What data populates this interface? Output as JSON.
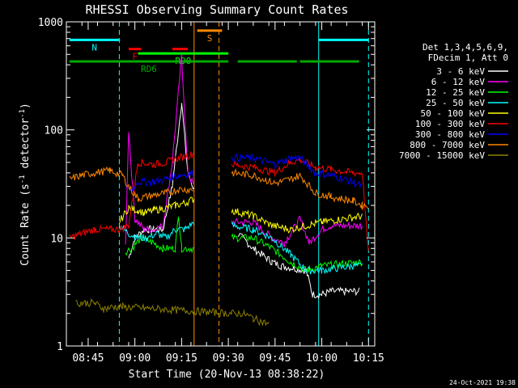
{
  "chart_data": {
    "type": "line",
    "title": "RHESSI Observing Summary Count Rates",
    "xlabel": "Start Time (20-Nov-13 08:38:22)",
    "ylabel_main": "Count Rate (s",
    "ylabel_sup1": "-1",
    "ylabel_mid": " detector",
    "ylabel_sup2": "-1",
    "ylabel_end": ")",
    "y_scale": "log",
    "ylim": [
      1,
      1000
    ],
    "xlim": [
      "08:38",
      "10:17"
    ],
    "y_ticks": [
      {
        "value": 1,
        "label": "1"
      },
      {
        "value": 10,
        "label": "10"
      },
      {
        "value": 100,
        "label": "100"
      },
      {
        "value": 1000,
        "label": "1000"
      }
    ],
    "x_ticks": [
      {
        "t": "08:45",
        "label": "08:45"
      },
      {
        "t": "09:00",
        "label": "09:00"
      },
      {
        "t": "09:15",
        "label": "09:15"
      },
      {
        "t": "09:30",
        "label": "09:30"
      },
      {
        "t": "09:45",
        "label": "09:45"
      },
      {
        "t": "10:00",
        "label": "10:00"
      },
      {
        "t": "10:15",
        "label": "10:15"
      }
    ],
    "legend_header": [
      "Det 1,3,4,5,6,9,",
      "FDecim 1, Att 0"
    ],
    "legend_position": "right",
    "series": [
      {
        "name": "3 - 6 keV",
        "color": "#ffffff",
        "points": [
          [
            "08:58",
            6.5
          ],
          [
            "09:00",
            10
          ],
          [
            "09:03",
            12
          ],
          [
            "09:06",
            12
          ],
          [
            "09:09",
            12
          ],
          [
            "09:12",
            30
          ],
          [
            "09:15",
            180
          ],
          [
            "09:17",
            40
          ],
          [
            "09:19",
            28
          ],
          [
            "09:33",
            11
          ],
          [
            "09:38",
            8
          ],
          [
            "09:44",
            6
          ],
          [
            "09:47",
            5.5
          ],
          [
            "09:55",
            5
          ],
          [
            "09:57",
            3
          ],
          [
            "10:00",
            3
          ],
          [
            "10:03",
            3.2
          ],
          [
            "10:12",
            3.2
          ]
        ]
      },
      {
        "name": "6 - 12 keV",
        "color": "#ff00ff",
        "points": [
          [
            "08:57",
            8.5
          ],
          [
            "08:58",
            100
          ],
          [
            "09:00",
            15
          ],
          [
            "09:03",
            12
          ],
          [
            "09:06",
            12
          ],
          [
            "09:09",
            13
          ],
          [
            "09:12",
            50
          ],
          [
            "09:15",
            480
          ],
          [
            "09:17",
            40
          ],
          [
            "09:19",
            30
          ],
          [
            "09:31",
            14
          ],
          [
            "09:38",
            14
          ],
          [
            "09:44",
            10
          ],
          [
            "09:48",
            9
          ],
          [
            "09:53",
            15
          ],
          [
            "09:56",
            9
          ],
          [
            "10:00",
            12
          ],
          [
            "10:03",
            13
          ],
          [
            "10:13",
            13
          ]
        ]
      },
      {
        "name": "12 - 25 keV",
        "color": "#00ff00",
        "points": [
          [
            "08:57",
            7.5
          ],
          [
            "08:59",
            8
          ],
          [
            "09:02",
            10
          ],
          [
            "09:06",
            9
          ],
          [
            "09:09",
            8
          ],
          [
            "09:13",
            8
          ],
          [
            "09:14",
            17
          ],
          [
            "09:15",
            8
          ],
          [
            "09:19",
            8
          ],
          [
            "09:31",
            10
          ],
          [
            "09:38",
            10
          ],
          [
            "09:44",
            8
          ],
          [
            "09:50",
            6
          ],
          [
            "09:55",
            5
          ],
          [
            "10:00",
            5.5
          ],
          [
            "10:13",
            6
          ]
        ]
      },
      {
        "name": "25 - 50 keV",
        "color": "#00ffff",
        "points": [
          [
            "08:55",
            13
          ],
          [
            "08:58",
            11
          ],
          [
            "09:01",
            10
          ],
          [
            "09:04",
            10
          ],
          [
            "09:07",
            11
          ],
          [
            "09:10",
            10
          ],
          [
            "09:13",
            12
          ],
          [
            "09:16",
            12
          ],
          [
            "09:19",
            14
          ],
          [
            "09:31",
            13
          ],
          [
            "09:38",
            12
          ],
          [
            "09:44",
            10
          ],
          [
            "09:50",
            7
          ],
          [
            "09:55",
            5
          ],
          [
            "10:00",
            5
          ],
          [
            "10:10",
            5.5
          ],
          [
            "10:13",
            5.5
          ]
        ]
      },
      {
        "name": "50 - 100 keV",
        "color": "#ffff00",
        "points": [
          [
            "08:55",
            14
          ],
          [
            "08:58",
            19
          ],
          [
            "09:01",
            18
          ],
          [
            "09:03",
            17
          ],
          [
            "09:06",
            18
          ],
          [
            "09:10",
            19
          ],
          [
            "09:13",
            20
          ],
          [
            "09:16",
            21
          ],
          [
            "09:19",
            23
          ],
          [
            "09:31",
            18
          ],
          [
            "09:38",
            16
          ],
          [
            "09:44",
            13
          ],
          [
            "09:50",
            12
          ],
          [
            "09:55",
            13
          ],
          [
            "10:00",
            14
          ],
          [
            "10:13",
            16
          ]
        ]
      },
      {
        "name": "100 - 300 keV",
        "color": "#ff0000",
        "points": [
          [
            "08:39",
            10
          ],
          [
            "08:43",
            11
          ],
          [
            "08:47",
            12
          ],
          [
            "08:52",
            12
          ],
          [
            "08:55",
            12
          ],
          [
            "08:58",
            13
          ],
          [
            "09:01",
            50
          ],
          [
            "09:06",
            48
          ],
          [
            "09:10",
            50
          ],
          [
            "09:14",
            55
          ],
          [
            "09:19",
            60
          ],
          [
            "09:31",
            48
          ],
          [
            "09:38",
            45
          ],
          [
            "09:45",
            40
          ],
          [
            "09:50",
            50
          ],
          [
            "09:53",
            53
          ],
          [
            "09:58",
            45
          ],
          [
            "10:03",
            43
          ],
          [
            "10:10",
            40
          ],
          [
            "10:13",
            40
          ],
          [
            "10:15",
            7
          ]
        ]
      },
      {
        "name": "300 - 800 keV",
        "color": "#0000ff",
        "points": [
          [
            "08:57",
            30
          ],
          [
            "08:59",
            28
          ],
          [
            "09:01",
            33
          ],
          [
            "09:06",
            33
          ],
          [
            "09:10",
            35
          ],
          [
            "09:14",
            38
          ],
          [
            "09:19",
            40
          ],
          [
            "09:31",
            55
          ],
          [
            "09:38",
            55
          ],
          [
            "09:45",
            48
          ],
          [
            "09:50",
            55
          ],
          [
            "09:53",
            55
          ],
          [
            "09:58",
            40
          ],
          [
            "10:03",
            38
          ],
          [
            "10:10",
            33
          ],
          [
            "10:13",
            30
          ]
        ]
      },
      {
        "name": "800 - 7000 keV",
        "color": "#ff8800",
        "points": [
          [
            "08:39",
            35
          ],
          [
            "08:43",
            38
          ],
          [
            "08:47",
            40
          ],
          [
            "08:52",
            42
          ],
          [
            "08:56",
            38
          ],
          [
            "08:58",
            30
          ],
          [
            "09:01",
            23
          ],
          [
            "09:06",
            25
          ],
          [
            "09:10",
            26
          ],
          [
            "09:14",
            28
          ],
          [
            "09:19",
            28
          ],
          [
            "09:31",
            40
          ],
          [
            "09:38",
            38
          ],
          [
            "09:45",
            32
          ],
          [
            "09:50",
            35
          ],
          [
            "09:53",
            38
          ],
          [
            "09:58",
            26
          ],
          [
            "10:03",
            24
          ],
          [
            "10:10",
            22
          ],
          [
            "10:13",
            20
          ],
          [
            "10:15",
            20
          ]
        ]
      },
      {
        "name": "7000 - 15000 keV",
        "color": "#8c8000",
        "points": [
          [
            "08:41",
            2.5
          ],
          [
            "08:43",
            2.5
          ],
          [
            "08:47",
            2.5
          ],
          [
            "08:50",
            2.2
          ],
          [
            "08:53",
            2.3
          ],
          [
            "08:56",
            2.3
          ],
          [
            "09:31",
            2
          ],
          [
            "09:35",
            2
          ],
          [
            "09:38",
            1.8
          ],
          [
            "09:40",
            1.7
          ],
          [
            "09:43",
            1.6
          ]
        ]
      }
    ],
    "annotations": {
      "spans": [
        {
          "label": "N",
          "color": "#00ffff",
          "from": "08:39",
          "to": "08:55",
          "y": 680
        },
        {
          "label": "F",
          "color": "#ff0000",
          "from": "08:58",
          "to": "09:02",
          "y": 560
        },
        {
          "label": "",
          "color": "#ff0000",
          "from": "09:12",
          "to": "09:17",
          "y": 560
        },
        {
          "label": "S",
          "color": "#ff8800",
          "from": "09:20",
          "to": "09:28",
          "y": 830
        },
        {
          "label": "",
          "color": "#00ffff",
          "from": "09:59",
          "to": "10:15",
          "y": 680
        },
        {
          "label": "RD0",
          "color": "#00ff00",
          "from": "09:01",
          "to": "09:30",
          "y": 510
        },
        {
          "label": "RD6",
          "color": "#00aa00",
          "from": "08:39",
          "to": "09:30",
          "y": 430
        },
        {
          "label": "",
          "color": "#00aa00",
          "from": "09:33",
          "to": "09:52",
          "y": 430
        },
        {
          "label": "",
          "color": "#00aa00",
          "from": "09:53",
          "to": "10:12",
          "y": 430
        }
      ],
      "vlines": [
        {
          "t": "08:55",
          "color": "#00ffff",
          "style": "dashed"
        },
        {
          "t": "09:19",
          "color": "#ff8800",
          "style": "solid"
        },
        {
          "t": "09:27",
          "color": "#ff8800",
          "style": "dashed"
        },
        {
          "t": "09:59",
          "color": "#00ffff",
          "style": "solid"
        },
        {
          "t": "10:15",
          "color": "#00ffff",
          "style": "dashed"
        }
      ]
    },
    "data_gaps": [
      [
        "09:19",
        "09:31"
      ]
    ],
    "timestamp": "24-Oct-2021 19:38"
  }
}
